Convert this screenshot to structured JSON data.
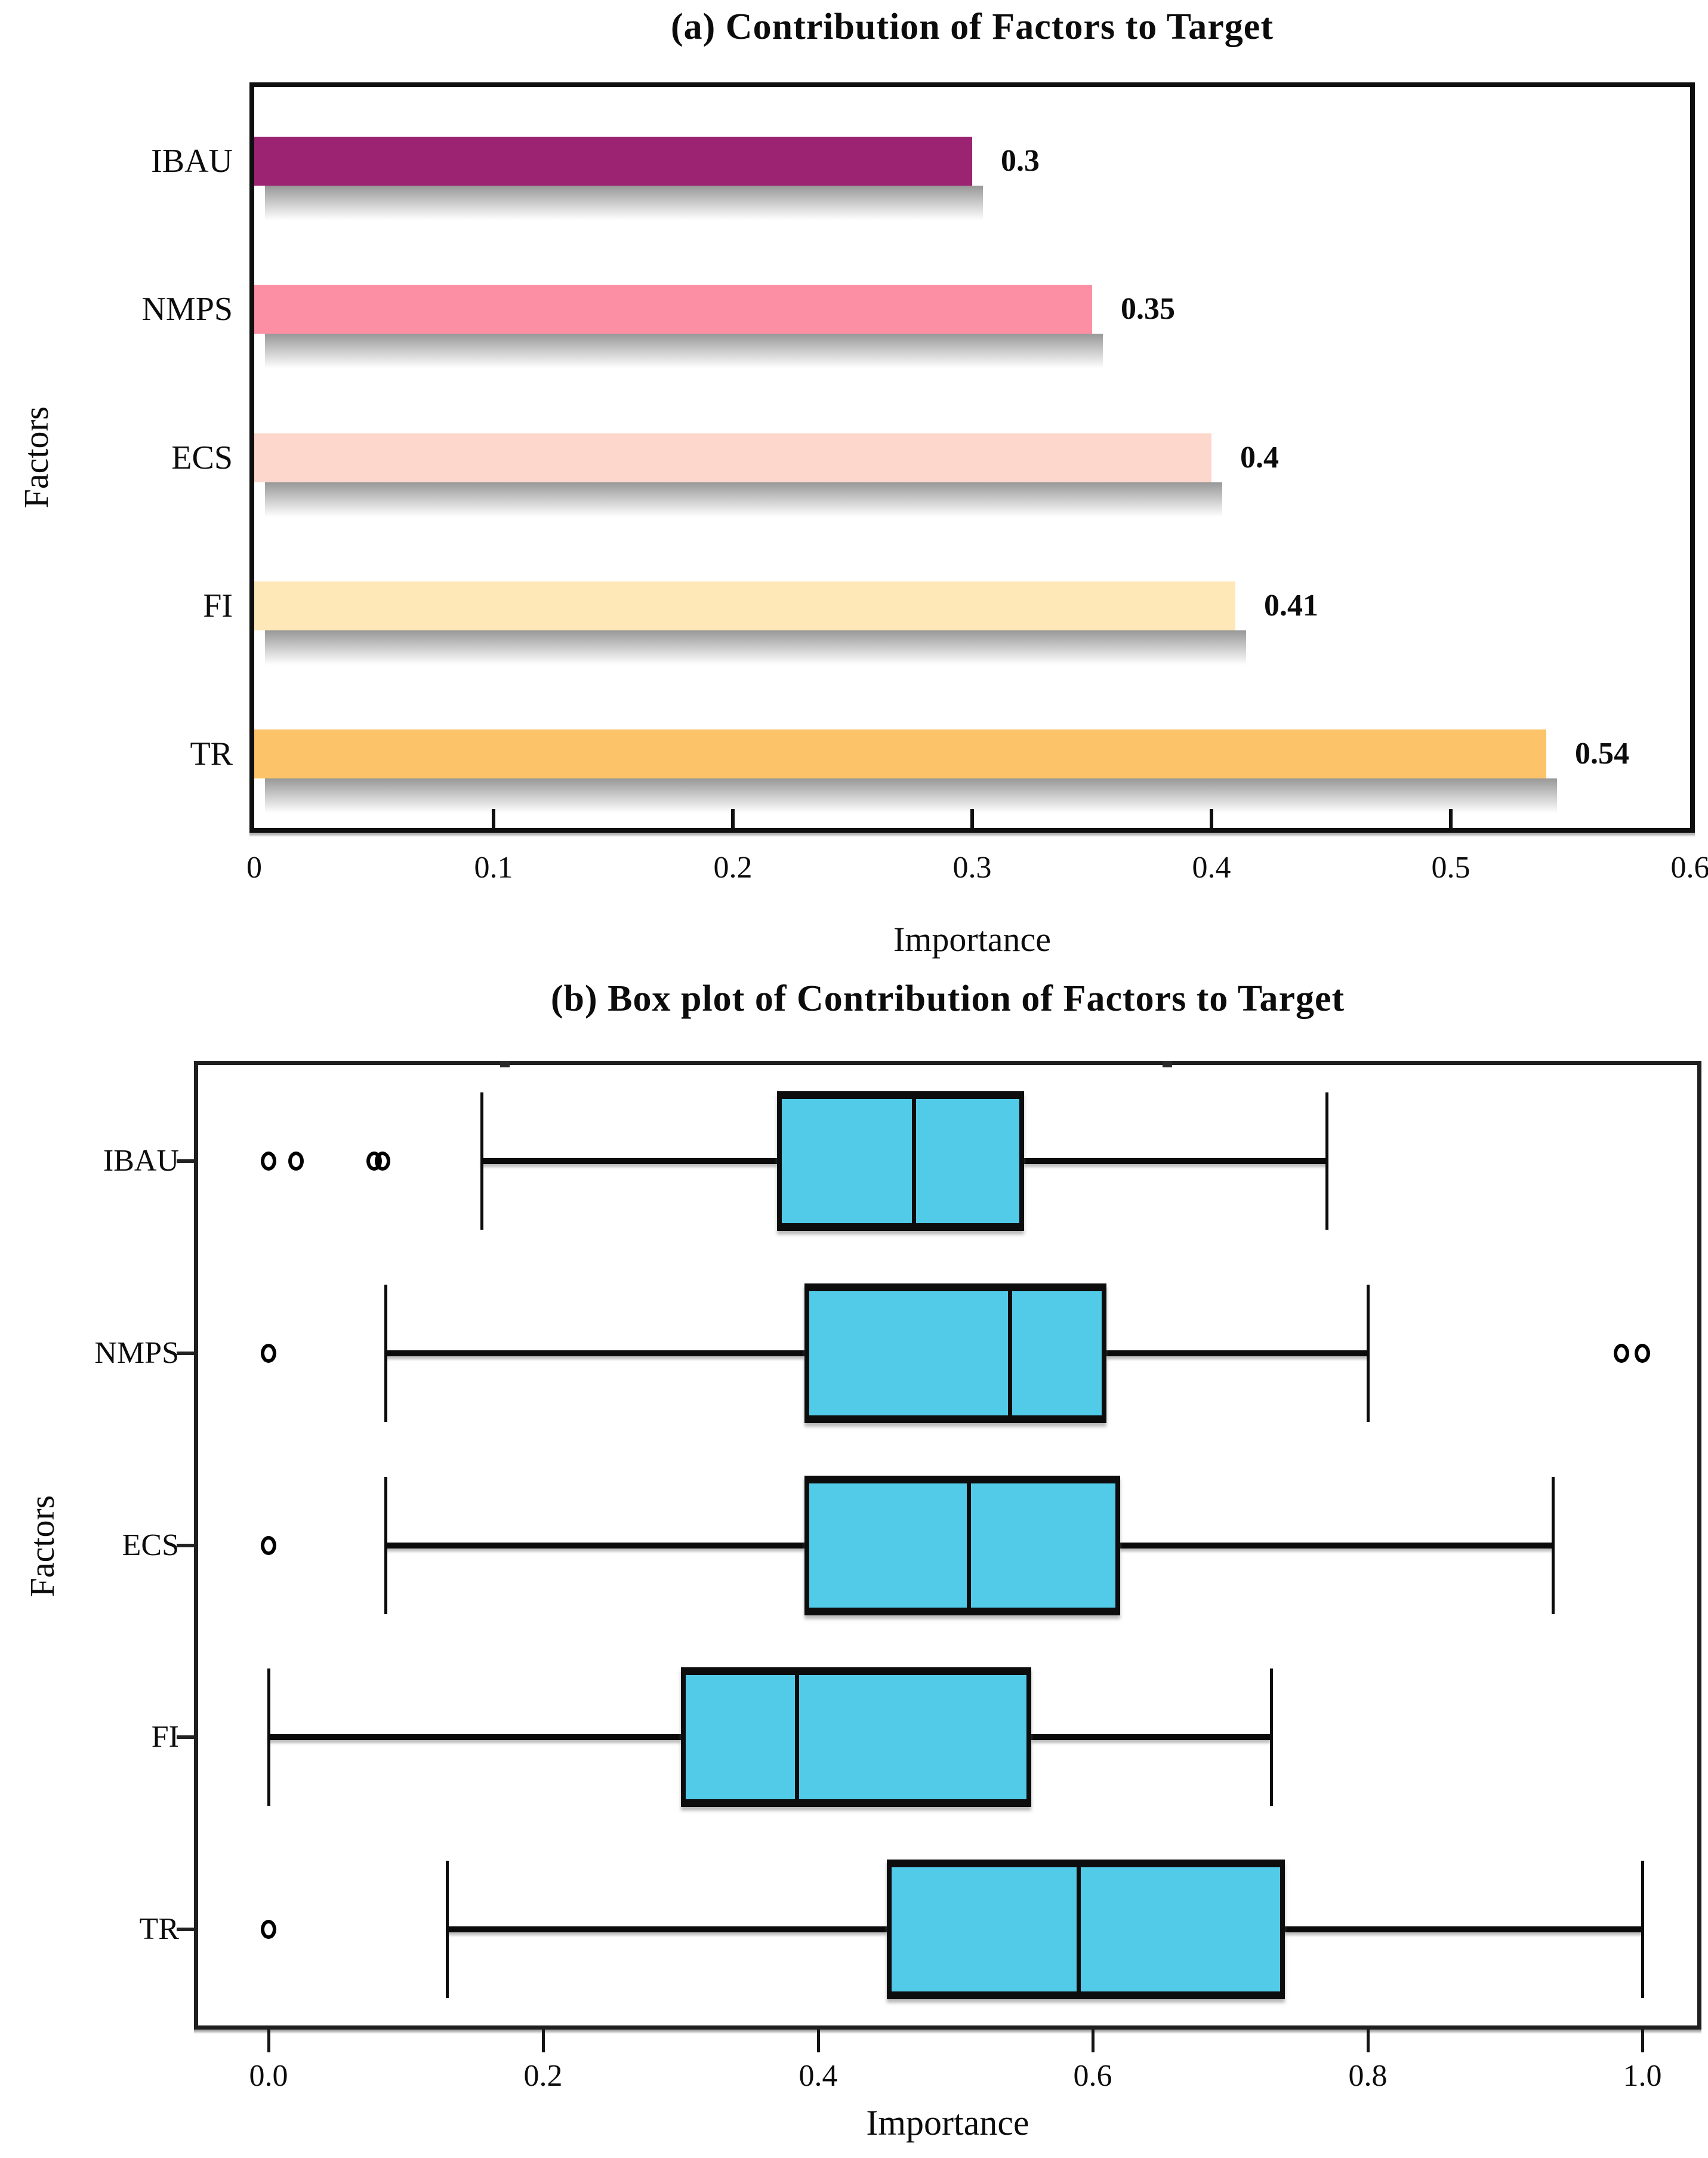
{
  "chart_data": [
    {
      "type": "bar",
      "panel": "a",
      "title": "(a) Contribution  of Factors to Target",
      "xlabel": "Importance",
      "ylabel": "Factors",
      "orientation": "horizontal",
      "categories": [
        "IBAU",
        "NMPS",
        "ECS",
        "FI",
        "TR"
      ],
      "values": [
        0.3,
        0.35,
        0.4,
        0.41,
        0.54
      ],
      "value_labels": [
        "0.3",
        "0.35",
        "0.4",
        "0.41",
        "0.54"
      ],
      "bar_colors": [
        "#9B2372",
        "#FC8FA4",
        "#FDD7CC",
        "#FEE8B8",
        "#FCC368"
      ],
      "xlim": [
        0,
        0.6
      ],
      "x_ticks": [
        0,
        0.1,
        0.2,
        0.3,
        0.4,
        0.5,
        0.6
      ],
      "x_tick_labels": [
        "0",
        "0.1",
        "0.2",
        "0.3",
        "0.4",
        "0.5",
        "0.6"
      ],
      "grid": false,
      "legend": "none"
    },
    {
      "type": "box",
      "panel": "b",
      "title": "(b) Box plot of Contribution  of Factors to Target",
      "xlabel": "Importance",
      "ylabel": "Factors",
      "orientation": "horizontal",
      "categories": [
        "IBAU",
        "NMPS",
        "ECS",
        "FI",
        "TR"
      ],
      "box_fill_color": "#52CBE8",
      "line_color": "#0b0b0b",
      "xlim": [
        0,
        1.0
      ],
      "x_ticks": [
        0,
        0.2,
        0.4,
        0.6,
        0.8,
        1.0
      ],
      "x_tick_labels": [
        "0.0",
        "0.2",
        "0.4",
        "0.6",
        "0.8",
        "1.0"
      ],
      "grid": false,
      "boxes": [
        {
          "label": "IBAU",
          "whisker_low": 0.155,
          "q1": 0.37,
          "median": 0.47,
          "q3": 0.55,
          "whisker_high": 0.77,
          "outliers": [
            0.0,
            0.02,
            0.077,
            0.083
          ]
        },
        {
          "label": "NMPS",
          "whisker_low": 0.085,
          "q1": 0.39,
          "median": 0.54,
          "q3": 0.61,
          "whisker_high": 0.8,
          "outliers": [
            0.0,
            0.985,
            1.0
          ]
        },
        {
          "label": "ECS",
          "whisker_low": 0.085,
          "q1": 0.39,
          "median": 0.51,
          "q3": 0.62,
          "whisker_high": 0.935,
          "outliers": [
            0.0
          ]
        },
        {
          "label": "FI",
          "whisker_low": 0.0,
          "q1": 0.3,
          "median": 0.385,
          "q3": 0.555,
          "whisker_high": 0.73,
          "outliers": []
        },
        {
          "label": "TR",
          "whisker_low": 0.13,
          "q1": 0.45,
          "median": 0.59,
          "q3": 0.74,
          "whisker_high": 1.0,
          "outliers": [
            0.0
          ]
        }
      ]
    }
  ]
}
